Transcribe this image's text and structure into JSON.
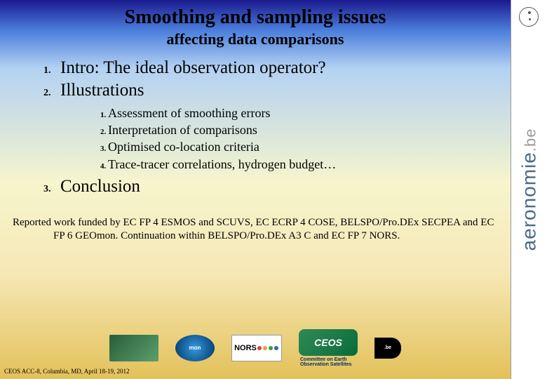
{
  "title": "Smoothing and sampling issues",
  "subtitle": "affecting data comparisons",
  "outline": [
    {
      "label": "Intro: The ideal observation operator?"
    },
    {
      "label": "Illustrations",
      "subitems": [
        "Assessment of smoothing errors",
        "Interpretation of comparisons",
        "Optimised co-location criteria",
        "Trace-tracer correlations, hydrogen budget…"
      ]
    },
    {
      "label": "Conclusion"
    }
  ],
  "acknowledgement": "Reported work funded by EC FP 4 ESMOS and SCUVS, EC ECRP 4 COSE, BELSPO/Pro.DEx SECPEA and EC FP 6 GEOmon. Continuation within BELSPO/Pro.DEx A3 C and EC FP 7 NORS.",
  "footer_credit": "CEOS ACC-8, Columbia, MD, April 18-19, 2012",
  "side_brand": {
    "main": "aeronomie",
    "suffix": ".be"
  },
  "logos": {
    "geomon": "mon",
    "nors": "NORS",
    "ceos": "CEOS",
    "ceos_full": "Committee on Earth Observation Satellites",
    "belspo": ".be"
  },
  "nors_dot_colors": [
    "#d94040",
    "#e8a030",
    "#3a9c4a",
    "#2a6bbc"
  ],
  "colors": {
    "grad_top": "#1a1a8e",
    "grad_upper": "#4b7edc",
    "grad_mid": "#f6f5cd",
    "grad_bottom": "#e3c15a",
    "side_text": "#4a6b8a"
  }
}
